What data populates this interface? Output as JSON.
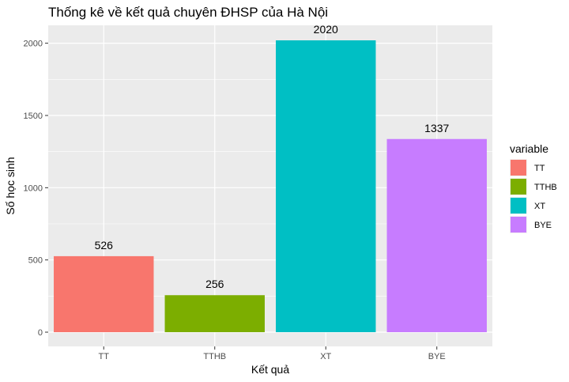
{
  "chart_data": {
    "type": "bar",
    "title": "Thống kê về kết quả chuyên ĐHSP  của Hà Nội",
    "xlabel": "Kết quả",
    "ylabel": "Số học sinh",
    "categories": [
      "TT",
      "TTHB",
      "XT",
      "BYE"
    ],
    "values": [
      526,
      256,
      2020,
      1337
    ],
    "colors": [
      "#F8766D",
      "#7CAE00",
      "#00BFC4",
      "#C77CFF"
    ],
    "ylim": [
      0,
      2100
    ],
    "yticks": [
      0,
      500,
      1000,
      1500,
      2000
    ],
    "grid": true,
    "legend": {
      "title": "variable",
      "placement": "right",
      "entries": [
        "TT",
        "TTHB",
        "XT",
        "BYE"
      ]
    }
  }
}
